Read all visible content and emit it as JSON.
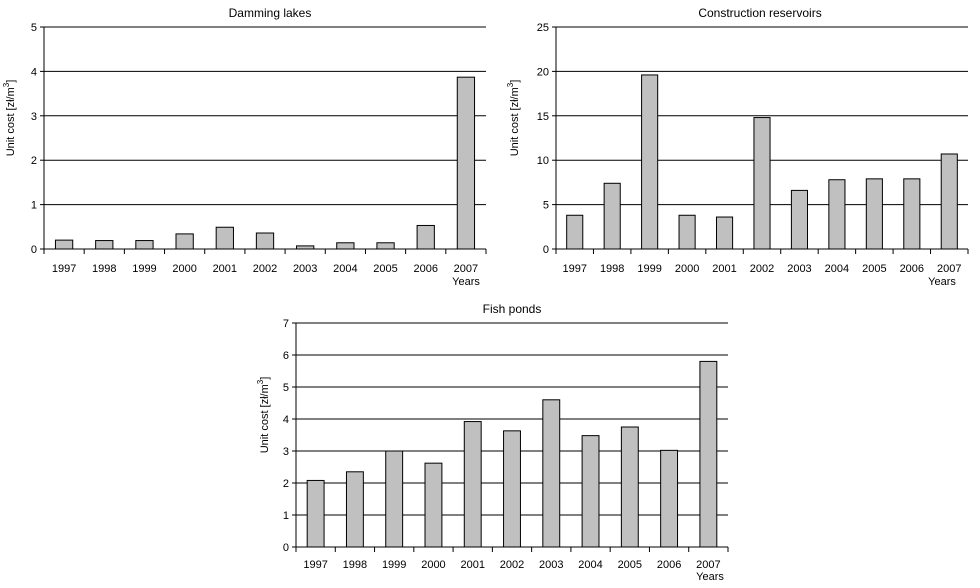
{
  "chart_data": [
    {
      "type": "bar",
      "title": "Damming lakes",
      "ylabel": "Unit cost [zł/m",
      "ylabel_sup": "3",
      "ylabel_end": "]",
      "xlabel": "Years",
      "ylim": [
        0,
        5
      ],
      "yticks": [
        "0",
        "1",
        "2",
        "3",
        "4",
        "5"
      ],
      "grid": true,
      "categories": [
        "1997",
        "1998",
        "1999",
        "2000",
        "2001",
        "2002",
        "2003",
        "2004",
        "2005",
        "2006",
        "2007"
      ],
      "values": [
        0.2,
        0.19,
        0.19,
        0.34,
        0.49,
        0.36,
        0.07,
        0.14,
        0.14,
        0.53,
        3.87
      ],
      "bar_color": "#c0c0c0"
    },
    {
      "type": "bar",
      "title": "Construction reservoirs",
      "ylabel": "Unit cost [zł/m",
      "ylabel_sup": "3",
      "ylabel_end": "]",
      "xlabel": "Years",
      "ylim": [
        0,
        25
      ],
      "yticks": [
        "0",
        "5",
        "10",
        "15",
        "20",
        "25"
      ],
      "grid": true,
      "categories": [
        "1997",
        "1998",
        "1999",
        "2000",
        "2001",
        "2002",
        "2003",
        "2004",
        "2005",
        "2006",
        "2007"
      ],
      "values": [
        3.8,
        7.4,
        19.6,
        3.8,
        3.6,
        14.8,
        6.6,
        7.8,
        7.9,
        7.9,
        10.7
      ],
      "bar_color": "#c0c0c0"
    },
    {
      "type": "bar",
      "title": "Fish ponds",
      "ylabel": "Unit cost [zł/m",
      "ylabel_sup": "3",
      "ylabel_end": "]",
      "xlabel": "Years",
      "ylim": [
        0,
        7
      ],
      "yticks": [
        "0",
        "1",
        "2",
        "3",
        "4",
        "5",
        "6",
        "7"
      ],
      "grid": true,
      "categories": [
        "1997",
        "1998",
        "1999",
        "2000",
        "2001",
        "2002",
        "2003",
        "2004",
        "2005",
        "2006",
        "2007"
      ],
      "values": [
        2.08,
        2.35,
        3.0,
        2.62,
        3.92,
        3.63,
        4.6,
        3.48,
        3.75,
        3.02,
        5.8
      ],
      "bar_color": "#c0c0c0"
    }
  ]
}
